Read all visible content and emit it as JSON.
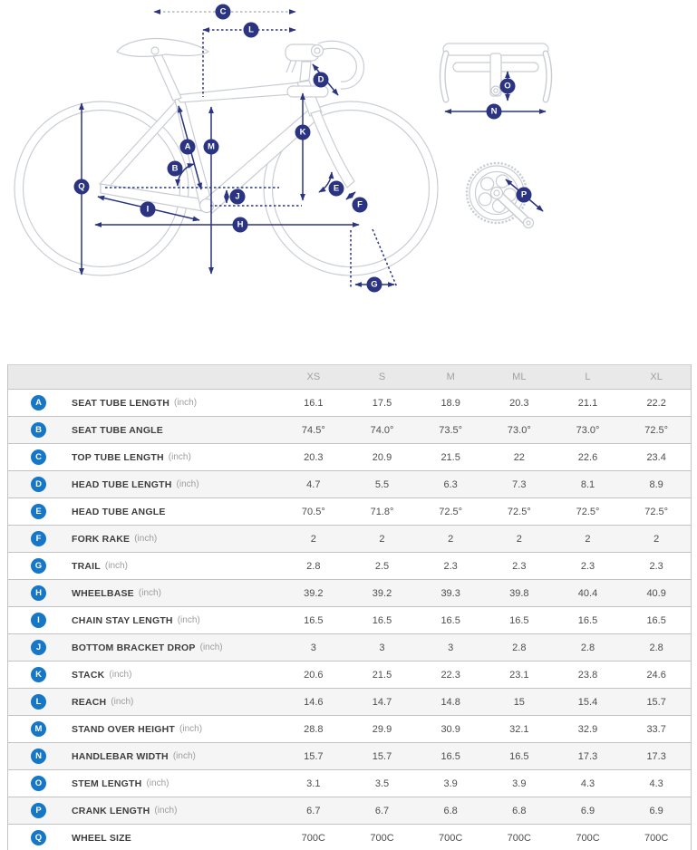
{
  "diagram": {
    "markers": [
      {
        "letter": "A"
      },
      {
        "letter": "B"
      },
      {
        "letter": "C"
      },
      {
        "letter": "D"
      },
      {
        "letter": "E"
      },
      {
        "letter": "F"
      },
      {
        "letter": "G"
      },
      {
        "letter": "H"
      },
      {
        "letter": "I"
      },
      {
        "letter": "J"
      },
      {
        "letter": "K"
      },
      {
        "letter": "L"
      },
      {
        "letter": "M"
      },
      {
        "letter": "N"
      },
      {
        "letter": "O"
      },
      {
        "letter": "P"
      },
      {
        "letter": "Q"
      }
    ],
    "colors": {
      "arrow_navy": "#2a3480",
      "outline_gray": "#c9cdd3",
      "c_arrow_gray": "#b4b7c0"
    }
  },
  "table": {
    "columns": [
      "XS",
      "S",
      "M",
      "ML",
      "L",
      "XL"
    ],
    "badge_color": "#1577c5",
    "rows": [
      {
        "letter": "A",
        "label": "SEAT TUBE LENGTH",
        "unit": "inch",
        "values": [
          "16.1",
          "17.5",
          "18.9",
          "20.3",
          "21.1",
          "22.2"
        ]
      },
      {
        "letter": "B",
        "label": "SEAT TUBE ANGLE",
        "unit": "",
        "values": [
          "74.5°",
          "74.0°",
          "73.5°",
          "73.0°",
          "73.0°",
          "72.5°"
        ]
      },
      {
        "letter": "C",
        "label": "TOP TUBE LENGTH",
        "unit": "inch",
        "values": [
          "20.3",
          "20.9",
          "21.5",
          "22",
          "22.6",
          "23.4"
        ]
      },
      {
        "letter": "D",
        "label": "HEAD TUBE LENGTH",
        "unit": "inch",
        "values": [
          "4.7",
          "5.5",
          "6.3",
          "7.3",
          "8.1",
          "8.9"
        ]
      },
      {
        "letter": "E",
        "label": "HEAD TUBE ANGLE",
        "unit": "",
        "values": [
          "70.5°",
          "71.8°",
          "72.5°",
          "72.5°",
          "72.5°",
          "72.5°"
        ]
      },
      {
        "letter": "F",
        "label": "FORK RAKE",
        "unit": "inch",
        "values": [
          "2",
          "2",
          "2",
          "2",
          "2",
          "2"
        ]
      },
      {
        "letter": "G",
        "label": "TRAIL",
        "unit": "inch",
        "values": [
          "2.8",
          "2.5",
          "2.3",
          "2.3",
          "2.3",
          "2.3"
        ]
      },
      {
        "letter": "H",
        "label": "WHEELBASE",
        "unit": "inch",
        "values": [
          "39.2",
          "39.2",
          "39.3",
          "39.8",
          "40.4",
          "40.9"
        ]
      },
      {
        "letter": "I",
        "label": "CHAIN STAY LENGTH",
        "unit": "inch",
        "values": [
          "16.5",
          "16.5",
          "16.5",
          "16.5",
          "16.5",
          "16.5"
        ]
      },
      {
        "letter": "J",
        "label": "BOTTOM BRACKET DROP",
        "unit": "inch",
        "values": [
          "3",
          "3",
          "3",
          "2.8",
          "2.8",
          "2.8"
        ]
      },
      {
        "letter": "K",
        "label": "STACK",
        "unit": "inch",
        "values": [
          "20.6",
          "21.5",
          "22.3",
          "23.1",
          "23.8",
          "24.6"
        ]
      },
      {
        "letter": "L",
        "label": "REACH",
        "unit": "inch",
        "values": [
          "14.6",
          "14.7",
          "14.8",
          "15",
          "15.4",
          "15.7"
        ]
      },
      {
        "letter": "M",
        "label": "STAND OVER HEIGHT",
        "unit": "inch",
        "values": [
          "28.8",
          "29.9",
          "30.9",
          "32.1",
          "32.9",
          "33.7"
        ]
      },
      {
        "letter": "N",
        "label": "HANDLEBAR WIDTH",
        "unit": "inch",
        "values": [
          "15.7",
          "15.7",
          "16.5",
          "16.5",
          "17.3",
          "17.3"
        ]
      },
      {
        "letter": "O",
        "label": "STEM LENGTH",
        "unit": "inch",
        "values": [
          "3.1",
          "3.5",
          "3.9",
          "3.9",
          "4.3",
          "4.3"
        ]
      },
      {
        "letter": "P",
        "label": "CRANK LENGTH",
        "unit": "inch",
        "values": [
          "6.7",
          "6.7",
          "6.8",
          "6.8",
          "6.9",
          "6.9"
        ]
      },
      {
        "letter": "Q",
        "label": "WHEEL SIZE",
        "unit": "",
        "values": [
          "700C",
          "700C",
          "700C",
          "700C",
          "700C",
          "700C"
        ]
      }
    ]
  }
}
